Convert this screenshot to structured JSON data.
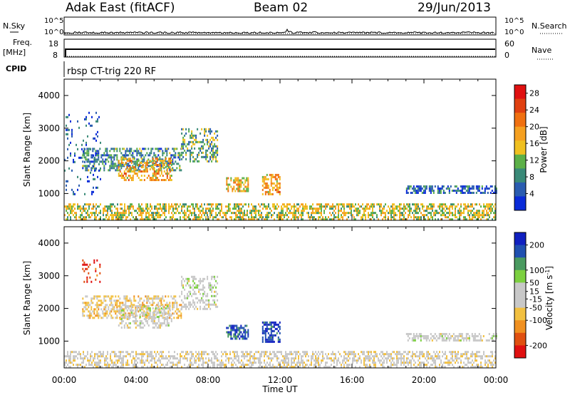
{
  "header": {
    "radar": "Adak East (fitACF)",
    "beam": "Beam 02",
    "date": "29/Jun/2013"
  },
  "small_panels": {
    "nsky_label": "N.Sky",
    "nsearch_label": "N.Search",
    "freq_label_1": "Freq.",
    "freq_label_2": "[MHz]",
    "nave_label": "Nave",
    "cpid_label": "CPID",
    "cpid_value": "rbsp CT-trig 220 RF",
    "noise_left_ticks": [
      "10^5",
      "10^0"
    ],
    "noise_right_ticks": [
      "10^5",
      "10^0"
    ],
    "freq_ticks": [
      "18",
      "8"
    ],
    "nave_ticks": [
      "60",
      "0"
    ]
  },
  "colors": {
    "power_scale": [
      "#0a2bd8",
      "#2a5cb0",
      "#3a8a78",
      "#5cb048",
      "#f0c020",
      "#f5a020",
      "#f07010",
      "#e04010",
      "#e01010"
    ],
    "velocity_scale": [
      "#1020c0",
      "#2050b0",
      "#4a9a60",
      "#7cd040",
      "#c8c8c8",
      "#c8c8c8",
      "#f2c040",
      "#f09020",
      "#e05010",
      "#e01010"
    ]
  },
  "chart_data": [
    {
      "type": "heatmap",
      "title": "Power",
      "xlabel": "Time UT",
      "ylabel": "Slant Range [km]",
      "x_ticks": [
        "00:00",
        "04:00",
        "08:00",
        "12:00",
        "16:00",
        "20:00",
        "00:00"
      ],
      "y_ticks": [
        1000,
        2000,
        3000,
        4000
      ],
      "xlim_hours": [
        0,
        24
      ],
      "ylim": [
        180,
        4500
      ],
      "colorbar": {
        "label": "Power [dB]",
        "ticks": [
          4,
          8,
          12,
          16,
          20,
          24,
          28
        ],
        "range": [
          0,
          30
        ]
      },
      "echo_regions": [
        {
          "t0": 0.0,
          "t1": 24.0,
          "r0": 200,
          "r1": 700,
          "value": 14,
          "density": 0.55
        },
        {
          "t0": 1.0,
          "t1": 6.5,
          "r0": 1700,
          "r1": 2400,
          "value": 8,
          "density": 0.5
        },
        {
          "t0": 3.0,
          "t1": 6.0,
          "r0": 1400,
          "r1": 2100,
          "value": 18,
          "density": 0.45
        },
        {
          "t0": 6.5,
          "t1": 8.5,
          "r0": 2000,
          "r1": 3000,
          "value": 10,
          "density": 0.4
        },
        {
          "t0": 9.0,
          "t1": 10.2,
          "r0": 1100,
          "r1": 1500,
          "value": 16,
          "density": 0.6
        },
        {
          "t0": 11.0,
          "t1": 12.0,
          "r0": 1000,
          "r1": 1600,
          "value": 18,
          "density": 0.6
        },
        {
          "t0": 19.0,
          "t1": 24.0,
          "r0": 1000,
          "r1": 1250,
          "value": 6,
          "density": 0.55
        },
        {
          "t0": 0.0,
          "t1": 2.0,
          "r0": 1000,
          "r1": 3500,
          "value": 4,
          "density": 0.12
        }
      ]
    },
    {
      "type": "heatmap",
      "title": "Velocity",
      "xlabel": "Time UT",
      "ylabel": "Slant Range [km]",
      "x_ticks": [
        "00:00",
        "04:00",
        "08:00",
        "12:00",
        "16:00",
        "20:00",
        "00:00"
      ],
      "y_ticks": [
        1000,
        2000,
        3000,
        4000
      ],
      "xlim_hours": [
        0,
        24
      ],
      "ylim": [
        180,
        4500
      ],
      "colorbar": {
        "label": "Velocity [m s^-1]",
        "ticks": [
          200,
          100,
          50,
          15,
          -15,
          -50,
          -100,
          -200
        ],
        "range": [
          -250,
          250
        ]
      },
      "echo_regions": [
        {
          "t0": 0.0,
          "t1": 24.0,
          "r0": 200,
          "r1": 700,
          "value": -20,
          "density": 0.5
        },
        {
          "t0": 1.0,
          "t1": 6.5,
          "r0": 1700,
          "r1": 2400,
          "value": -60,
          "density": 0.5
        },
        {
          "t0": 3.0,
          "t1": 6.0,
          "r0": 1400,
          "r1": 2100,
          "value": 0,
          "density": 0.45
        },
        {
          "t0": 6.5,
          "t1": 8.5,
          "r0": 2000,
          "r1": 3000,
          "value": 5,
          "density": 0.4
        },
        {
          "t0": 9.0,
          "t1": 10.2,
          "r0": 1100,
          "r1": 1500,
          "value": 180,
          "density": 0.6
        },
        {
          "t0": 11.0,
          "t1": 12.0,
          "r0": 1000,
          "r1": 1600,
          "value": 200,
          "density": 0.6
        },
        {
          "t0": 19.0,
          "t1": 24.0,
          "r0": 1000,
          "r1": 1250,
          "value": 0,
          "density": 0.55
        },
        {
          "t0": 1.0,
          "t1": 2.0,
          "r0": 2800,
          "r1": 3500,
          "value": -200,
          "density": 0.2
        }
      ]
    }
  ]
}
